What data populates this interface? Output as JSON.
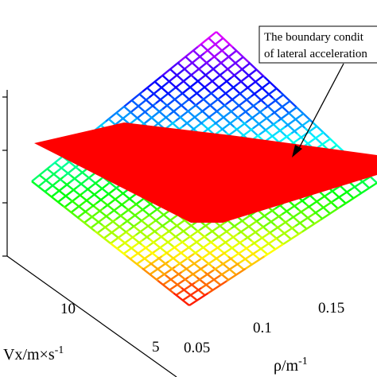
{
  "chart_data": {
    "type": "surface",
    "title": "",
    "xlabel": "ρ/m",
    "xlabel_sup": "-1",
    "ylabel": "Vx/m×s",
    "ylabel_sup": "-1",
    "zlabel": "",
    "x_ticks": [
      "0.05",
      "0.1",
      "0.15"
    ],
    "y_ticks": [
      "5",
      "10"
    ],
    "xlim": [
      0.05,
      0.2
    ],
    "ylim": [
      5,
      15
    ],
    "grid": false,
    "colormap": "hsv",
    "series": [
      {
        "kind": "mesh",
        "colormap": "hsv",
        "grid_lines": 12
      },
      {
        "kind": "plane",
        "color": "#ff0000"
      }
    ],
    "annotation": {
      "line1": "The boundary condit",
      "line2": "of lateral acceleration"
    }
  }
}
